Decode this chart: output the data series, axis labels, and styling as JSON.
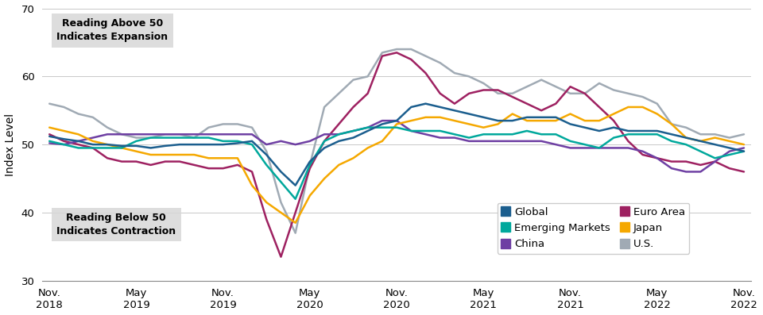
{
  "ylabel": "Index Level",
  "ylim": [
    30,
    70
  ],
  "yticks": [
    30,
    40,
    50,
    60,
    70
  ],
  "annotation_above": "Reading Above 50\nIndicates Expansion",
  "annotation_below": "Reading Below 50\nIndicates Contraction",
  "colors": {
    "Global": "#1b5e8e",
    "Emerging Markets": "#00a89c",
    "China": "#6e3fa3",
    "Euro Area": "#9e2161",
    "Japan": "#f5a800",
    "U.S.": "#a0aab4"
  },
  "x_tick_labels": [
    "Nov.\n2018",
    "May\n2019",
    "Nov.\n2019",
    "May\n2020",
    "Nov.\n2020",
    "May\n2021",
    "Nov.\n2021",
    "May\n2022",
    "Nov.\n2022"
  ],
  "x_tick_positions": [
    0,
    6,
    12,
    18,
    24,
    30,
    36,
    42,
    48
  ],
  "series": {
    "Global": [
      51.2,
      50.8,
      50.5,
      50.0,
      50.0,
      49.8,
      49.8,
      49.5,
      49.8,
      50.0,
      50.0,
      50.0,
      50.0,
      50.2,
      50.5,
      48.5,
      46.0,
      44.0,
      47.5,
      49.5,
      50.5,
      51.0,
      52.0,
      53.0,
      53.5,
      55.5,
      56.0,
      55.5,
      55.0,
      54.5,
      54.0,
      53.5,
      53.5,
      54.0,
      54.0,
      54.0,
      53.0,
      52.5,
      52.0,
      52.5,
      52.0,
      52.0,
      52.0,
      51.5,
      51.0,
      50.5,
      50.0,
      49.5,
      49.0
    ],
    "Emerging Markets": [
      50.5,
      50.0,
      49.5,
      49.5,
      49.5,
      49.5,
      50.5,
      51.0,
      51.0,
      51.0,
      51.0,
      51.0,
      50.5,
      50.5,
      50.0,
      47.0,
      44.5,
      42.0,
      47.0,
      50.5,
      51.5,
      52.0,
      52.5,
      52.5,
      52.5,
      52.0,
      52.0,
      52.0,
      51.5,
      51.0,
      51.5,
      51.5,
      51.5,
      52.0,
      51.5,
      51.5,
      50.5,
      50.0,
      49.5,
      51.0,
      51.5,
      51.5,
      51.5,
      50.5,
      50.0,
      49.0,
      48.0,
      48.5,
      49.0
    ],
    "China": [
      50.2,
      50.0,
      50.5,
      51.0,
      51.5,
      51.5,
      51.5,
      51.5,
      51.5,
      51.5,
      51.5,
      51.5,
      51.5,
      51.5,
      51.5,
      50.0,
      50.5,
      50.0,
      50.5,
      51.5,
      51.5,
      52.0,
      52.5,
      53.5,
      53.5,
      52.0,
      51.5,
      51.0,
      51.0,
      50.5,
      50.5,
      50.5,
      50.5,
      50.5,
      50.5,
      50.0,
      49.5,
      49.5,
      49.5,
      49.5,
      49.5,
      49.0,
      48.0,
      46.5,
      46.0,
      46.0,
      47.5,
      49.0,
      49.5
    ],
    "Euro Area": [
      51.5,
      50.5,
      50.0,
      49.5,
      48.0,
      47.5,
      47.5,
      47.0,
      47.5,
      47.5,
      47.0,
      46.5,
      46.5,
      47.0,
      46.0,
      39.0,
      33.5,
      40.0,
      46.5,
      50.5,
      53.0,
      55.5,
      57.5,
      63.0,
      63.5,
      62.5,
      60.5,
      57.5,
      56.0,
      57.5,
      58.0,
      58.0,
      57.0,
      56.0,
      55.0,
      56.0,
      58.5,
      57.5,
      55.5,
      53.5,
      50.5,
      48.5,
      48.0,
      47.5,
      47.5,
      47.0,
      47.5,
      46.5,
      46.0
    ],
    "Japan": [
      52.5,
      52.0,
      51.5,
      50.5,
      50.0,
      49.5,
      49.0,
      48.5,
      48.5,
      48.5,
      48.5,
      48.0,
      48.0,
      48.0,
      44.0,
      41.5,
      40.0,
      38.5,
      42.5,
      45.0,
      47.0,
      48.0,
      49.5,
      50.5,
      53.0,
      53.5,
      54.0,
      54.0,
      53.5,
      53.0,
      52.5,
      53.0,
      54.5,
      53.5,
      53.5,
      53.5,
      54.5,
      53.5,
      53.5,
      54.5,
      55.5,
      55.5,
      54.5,
      53.0,
      51.0,
      50.5,
      51.0,
      50.5,
      50.0
    ],
    "U.S.": [
      56.0,
      55.5,
      54.5,
      54.0,
      52.5,
      51.5,
      51.0,
      51.0,
      51.5,
      51.5,
      51.0,
      52.5,
      53.0,
      53.0,
      52.5,
      49.0,
      41.5,
      37.0,
      47.0,
      55.5,
      57.5,
      59.5,
      60.0,
      63.5,
      64.0,
      64.0,
      63.0,
      62.0,
      60.5,
      60.0,
      59.0,
      57.5,
      57.5,
      58.5,
      59.5,
      58.5,
      57.5,
      57.5,
      59.0,
      58.0,
      57.5,
      57.0,
      56.0,
      53.0,
      52.5,
      51.5,
      51.5,
      51.0,
      51.5
    ]
  },
  "legend_order": [
    "Global",
    "Emerging Markets",
    "China",
    "Euro Area",
    "Japan",
    "U.S."
  ]
}
